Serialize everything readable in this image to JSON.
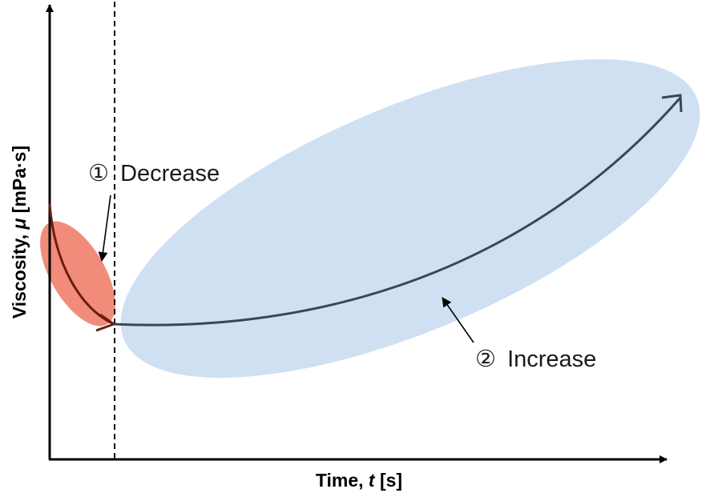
{
  "diagram": {
    "x_axis": {
      "label_prefix": "Time, ",
      "label_symbol": "t",
      "label_unit": " [s]"
    },
    "y_axis": {
      "label_prefix": "Viscosity, ",
      "label_symbol": "μ",
      "label_unit": " [mPa·s]"
    },
    "phases": [
      {
        "number": "①",
        "label": "Decrease",
        "color": "#f08270"
      },
      {
        "number": "②",
        "label": "Increase",
        "color": "#cfe0f2"
      }
    ],
    "colors": {
      "axis": "#000000",
      "curve_decrease": "#6b1e12",
      "curve_increase": "#3a4656",
      "divider": "#000000",
      "pointer": "#000000"
    }
  }
}
